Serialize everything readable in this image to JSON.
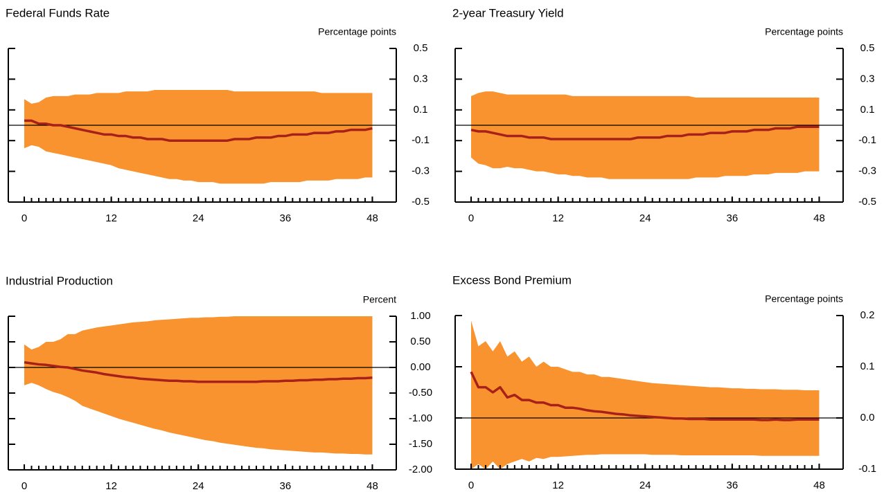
{
  "chart_data": [
    {
      "type": "band-line",
      "title": "Federal Funds Rate",
      "y_label": "Percentage points",
      "x": [
        0,
        1,
        2,
        3,
        4,
        5,
        6,
        7,
        8,
        9,
        10,
        11,
        12,
        13,
        14,
        15,
        16,
        17,
        18,
        19,
        20,
        21,
        22,
        23,
        24,
        25,
        26,
        27,
        28,
        29,
        30,
        31,
        32,
        33,
        34,
        35,
        36,
        37,
        38,
        39,
        40,
        41,
        42,
        43,
        44,
        45,
        46,
        47,
        48
      ],
      "values": [
        0.03,
        0.03,
        0.01,
        0.01,
        0.0,
        0.0,
        -0.01,
        -0.02,
        -0.03,
        -0.04,
        -0.05,
        -0.06,
        -0.06,
        -0.07,
        -0.07,
        -0.08,
        -0.08,
        -0.09,
        -0.09,
        -0.09,
        -0.1,
        -0.1,
        -0.1,
        -0.1,
        -0.1,
        -0.1,
        -0.1,
        -0.1,
        -0.1,
        -0.09,
        -0.09,
        -0.09,
        -0.08,
        -0.08,
        -0.08,
        -0.07,
        -0.07,
        -0.06,
        -0.06,
        -0.06,
        -0.05,
        -0.05,
        -0.05,
        -0.04,
        -0.04,
        -0.03,
        -0.03,
        -0.03,
        -0.02
      ],
      "upper": [
        0.17,
        0.14,
        0.15,
        0.18,
        0.19,
        0.19,
        0.19,
        0.2,
        0.2,
        0.2,
        0.21,
        0.21,
        0.21,
        0.21,
        0.22,
        0.22,
        0.22,
        0.22,
        0.23,
        0.23,
        0.23,
        0.23,
        0.23,
        0.23,
        0.23,
        0.23,
        0.23,
        0.23,
        0.23,
        0.22,
        0.22,
        0.22,
        0.22,
        0.22,
        0.22,
        0.22,
        0.22,
        0.22,
        0.22,
        0.22,
        0.22,
        0.21,
        0.21,
        0.21,
        0.21,
        0.21,
        0.21,
        0.21,
        0.21
      ],
      "lower": [
        -0.15,
        -0.13,
        -0.14,
        -0.17,
        -0.18,
        -0.19,
        -0.2,
        -0.21,
        -0.22,
        -0.23,
        -0.24,
        -0.25,
        -0.26,
        -0.28,
        -0.29,
        -0.3,
        -0.31,
        -0.32,
        -0.33,
        -0.34,
        -0.35,
        -0.35,
        -0.36,
        -0.36,
        -0.37,
        -0.37,
        -0.37,
        -0.38,
        -0.38,
        -0.38,
        -0.38,
        -0.38,
        -0.38,
        -0.38,
        -0.37,
        -0.37,
        -0.37,
        -0.37,
        -0.37,
        -0.36,
        -0.36,
        -0.36,
        -0.36,
        -0.35,
        -0.35,
        -0.35,
        -0.35,
        -0.34,
        -0.34
      ],
      "color": "#a8201a",
      "band_color": "#f9932f",
      "reference_line": 0,
      "xlim": [
        -2.2,
        51.3
      ],
      "xticks": [
        0,
        12,
        24,
        36,
        48
      ],
      "ylim": [
        -0.5,
        0.5
      ],
      "yticks": [
        0.5,
        0.3,
        0.1,
        -0.1,
        -0.3,
        -0.5
      ]
    },
    {
      "type": "band-line",
      "title": "2-year Treasury Yield",
      "y_label": "Percentage points",
      "x": [
        0,
        1,
        2,
        3,
        4,
        5,
        6,
        7,
        8,
        9,
        10,
        11,
        12,
        13,
        14,
        15,
        16,
        17,
        18,
        19,
        20,
        21,
        22,
        23,
        24,
        25,
        26,
        27,
        28,
        29,
        30,
        31,
        32,
        33,
        34,
        35,
        36,
        37,
        38,
        39,
        40,
        41,
        42,
        43,
        44,
        45,
        46,
        47,
        48
      ],
      "values": [
        -0.03,
        -0.04,
        -0.04,
        -0.05,
        -0.06,
        -0.07,
        -0.07,
        -0.07,
        -0.08,
        -0.08,
        -0.08,
        -0.09,
        -0.09,
        -0.09,
        -0.09,
        -0.09,
        -0.09,
        -0.09,
        -0.09,
        -0.09,
        -0.09,
        -0.09,
        -0.09,
        -0.08,
        -0.08,
        -0.08,
        -0.08,
        -0.07,
        -0.07,
        -0.07,
        -0.06,
        -0.06,
        -0.06,
        -0.05,
        -0.05,
        -0.05,
        -0.04,
        -0.04,
        -0.04,
        -0.03,
        -0.03,
        -0.03,
        -0.02,
        -0.02,
        -0.02,
        -0.01,
        -0.01,
        -0.01,
        -0.01
      ],
      "upper": [
        0.19,
        0.21,
        0.22,
        0.22,
        0.21,
        0.2,
        0.2,
        0.2,
        0.2,
        0.2,
        0.2,
        0.2,
        0.2,
        0.2,
        0.19,
        0.19,
        0.19,
        0.19,
        0.19,
        0.19,
        0.19,
        0.19,
        0.19,
        0.19,
        0.19,
        0.19,
        0.19,
        0.19,
        0.19,
        0.19,
        0.19,
        0.18,
        0.18,
        0.18,
        0.18,
        0.18,
        0.18,
        0.18,
        0.18,
        0.18,
        0.18,
        0.18,
        0.18,
        0.18,
        0.18,
        0.18,
        0.18,
        0.18,
        0.18
      ],
      "lower": [
        -0.21,
        -0.25,
        -0.26,
        -0.28,
        -0.28,
        -0.27,
        -0.28,
        -0.28,
        -0.29,
        -0.3,
        -0.3,
        -0.31,
        -0.32,
        -0.32,
        -0.33,
        -0.33,
        -0.34,
        -0.34,
        -0.34,
        -0.35,
        -0.35,
        -0.35,
        -0.35,
        -0.35,
        -0.35,
        -0.35,
        -0.35,
        -0.35,
        -0.35,
        -0.35,
        -0.35,
        -0.34,
        -0.34,
        -0.34,
        -0.34,
        -0.33,
        -0.33,
        -0.33,
        -0.33,
        -0.32,
        -0.32,
        -0.32,
        -0.31,
        -0.31,
        -0.31,
        -0.31,
        -0.3,
        -0.3,
        -0.3
      ],
      "color": "#a8201a",
      "band_color": "#f9932f",
      "reference_line": 0,
      "xlim": [
        -2.2,
        51.3
      ],
      "xticks": [
        0,
        12,
        24,
        36,
        48
      ],
      "ylim": [
        -0.5,
        0.5
      ],
      "yticks": [
        0.5,
        0.3,
        0.1,
        -0.1,
        -0.3,
        -0.5
      ]
    },
    {
      "type": "band-line",
      "title": "Industrial Production",
      "y_label": "Percent",
      "x": [
        0,
        1,
        2,
        3,
        4,
        5,
        6,
        7,
        8,
        9,
        10,
        11,
        12,
        13,
        14,
        15,
        16,
        17,
        18,
        19,
        20,
        21,
        22,
        23,
        24,
        25,
        26,
        27,
        28,
        29,
        30,
        31,
        32,
        33,
        34,
        35,
        36,
        37,
        38,
        39,
        40,
        41,
        42,
        43,
        44,
        45,
        46,
        47,
        48
      ],
      "values": [
        0.1,
        0.08,
        0.06,
        0.05,
        0.03,
        0.01,
        0.0,
        -0.03,
        -0.06,
        -0.08,
        -0.1,
        -0.13,
        -0.15,
        -0.17,
        -0.19,
        -0.2,
        -0.22,
        -0.23,
        -0.24,
        -0.25,
        -0.26,
        -0.26,
        -0.27,
        -0.27,
        -0.28,
        -0.28,
        -0.28,
        -0.28,
        -0.28,
        -0.28,
        -0.28,
        -0.28,
        -0.28,
        -0.27,
        -0.27,
        -0.27,
        -0.26,
        -0.26,
        -0.25,
        -0.25,
        -0.24,
        -0.24,
        -0.23,
        -0.23,
        -0.22,
        -0.22,
        -0.21,
        -0.21,
        -0.2
      ],
      "upper": [
        0.45,
        0.35,
        0.4,
        0.5,
        0.5,
        0.55,
        0.65,
        0.65,
        0.72,
        0.75,
        0.78,
        0.8,
        0.82,
        0.84,
        0.86,
        0.88,
        0.89,
        0.9,
        0.92,
        0.93,
        0.94,
        0.95,
        0.96,
        0.97,
        0.97,
        0.98,
        0.98,
        0.99,
        0.99,
        1.0,
        1.0,
        1.0,
        1.0,
        1.0,
        1.0,
        1.0,
        1.0,
        1.0,
        1.0,
        1.0,
        1.0,
        1.0,
        1.0,
        1.0,
        1.0,
        1.0,
        1.0,
        1.0,
        1.0
      ],
      "lower": [
        -0.35,
        -0.3,
        -0.35,
        -0.42,
        -0.48,
        -0.52,
        -0.58,
        -0.65,
        -0.75,
        -0.8,
        -0.85,
        -0.9,
        -0.95,
        -1.0,
        -1.04,
        -1.08,
        -1.12,
        -1.16,
        -1.2,
        -1.23,
        -1.27,
        -1.3,
        -1.33,
        -1.36,
        -1.39,
        -1.42,
        -1.44,
        -1.47,
        -1.49,
        -1.51,
        -1.53,
        -1.55,
        -1.57,
        -1.58,
        -1.6,
        -1.61,
        -1.62,
        -1.63,
        -1.64,
        -1.65,
        -1.66,
        -1.66,
        -1.67,
        -1.68,
        -1.68,
        -1.69,
        -1.69,
        -1.7,
        -1.7
      ],
      "color": "#a8201a",
      "band_color": "#f9932f",
      "reference_line": 0,
      "xlim": [
        -2.2,
        51.3
      ],
      "xticks": [
        0,
        12,
        24,
        36,
        48
      ],
      "ylim": [
        -2,
        1
      ],
      "yticks": [
        {
          "value": 1,
          "label": "1.00"
        },
        {
          "value": 0.5,
          "label": "0.50"
        },
        {
          "value": 0,
          "label": "0.00"
        },
        {
          "value": -0.5,
          "label": "-0.50"
        },
        {
          "value": -1,
          "label": "-1.00"
        },
        {
          "value": -1.5,
          "label": "-1.50"
        },
        {
          "value": -2,
          "label": "-2.00"
        }
      ]
    },
    {
      "type": "band-line",
      "title": "Excess Bond Premium",
      "y_label": "Percentage points",
      "x": [
        0,
        1,
        2,
        3,
        4,
        5,
        6,
        7,
        8,
        9,
        10,
        11,
        12,
        13,
        14,
        15,
        16,
        17,
        18,
        19,
        20,
        21,
        22,
        23,
        24,
        25,
        26,
        27,
        28,
        29,
        30,
        31,
        32,
        33,
        34,
        35,
        36,
        37,
        38,
        39,
        40,
        41,
        42,
        43,
        44,
        45,
        46,
        47,
        48
      ],
      "values": [
        0.09,
        0.06,
        0.06,
        0.05,
        0.06,
        0.04,
        0.045,
        0.035,
        0.035,
        0.03,
        0.03,
        0.025,
        0.025,
        0.02,
        0.02,
        0.018,
        0.015,
        0.013,
        0.012,
        0.01,
        0.008,
        0.007,
        0.005,
        0.004,
        0.003,
        0.002,
        0.001,
        0.0,
        -0.001,
        -0.001,
        -0.002,
        -0.002,
        -0.002,
        -0.003,
        -0.003,
        -0.003,
        -0.003,
        -0.003,
        -0.003,
        -0.003,
        -0.004,
        -0.004,
        -0.003,
        -0.004,
        -0.004,
        -0.003,
        -0.003,
        -0.003,
        -0.003
      ],
      "upper": [
        0.19,
        0.14,
        0.15,
        0.13,
        0.15,
        0.12,
        0.13,
        0.11,
        0.12,
        0.1,
        0.11,
        0.1,
        0.1,
        0.095,
        0.09,
        0.09,
        0.085,
        0.085,
        0.08,
        0.08,
        0.078,
        0.076,
        0.074,
        0.072,
        0.07,
        0.068,
        0.067,
        0.066,
        0.065,
        0.064,
        0.063,
        0.062,
        0.061,
        0.06,
        0.06,
        0.059,
        0.058,
        0.058,
        0.057,
        0.057,
        0.056,
        0.056,
        0.056,
        0.055,
        0.055,
        0.055,
        0.054,
        0.054,
        0.054
      ],
      "lower": [
        -0.1,
        -0.09,
        -0.1,
        -0.085,
        -0.1,
        -0.09,
        -0.085,
        -0.08,
        -0.085,
        -0.078,
        -0.08,
        -0.076,
        -0.076,
        -0.075,
        -0.074,
        -0.073,
        -0.072,
        -0.072,
        -0.071,
        -0.071,
        -0.071,
        -0.071,
        -0.071,
        -0.071,
        -0.071,
        -0.072,
        -0.072,
        -0.072,
        -0.072,
        -0.073,
        -0.073,
        -0.073,
        -0.073,
        -0.073,
        -0.073,
        -0.073,
        -0.073,
        -0.073,
        -0.073,
        -0.073,
        -0.074,
        -0.074,
        -0.074,
        -0.074,
        -0.074,
        -0.074,
        -0.074,
        -0.074,
        -0.074
      ],
      "color": "#a8201a",
      "band_color": "#f9932f",
      "reference_line": 0,
      "xlim": [
        -2.2,
        51.3
      ],
      "xticks": [
        0,
        12,
        24,
        36,
        48
      ],
      "ylim": [
        -0.1,
        0.2
      ],
      "yticks": [
        0.2,
        0.1,
        {
          "value": 0,
          "label": "0.0"
        },
        -0.1
      ]
    }
  ]
}
